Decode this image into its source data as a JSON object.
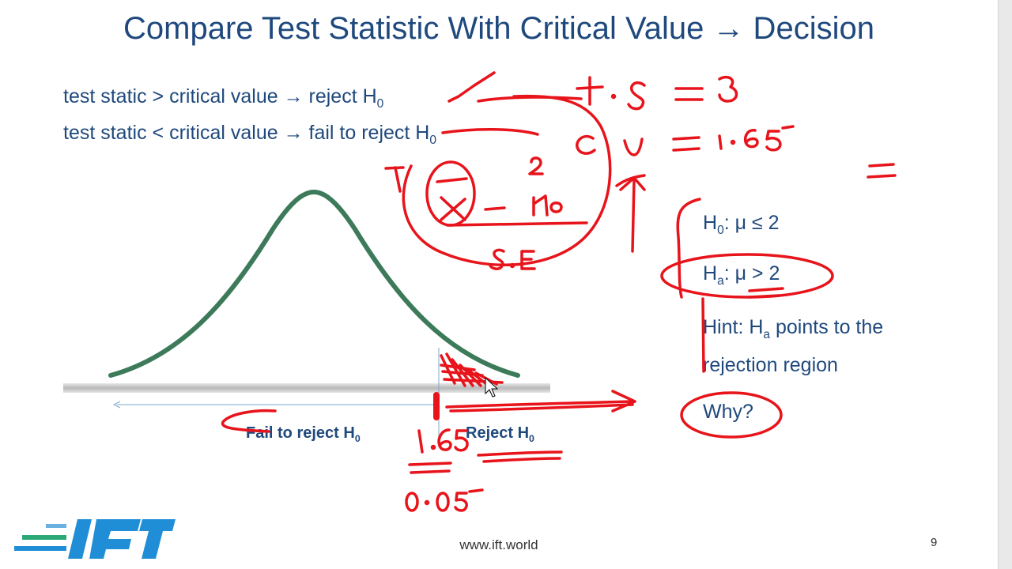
{
  "slide": {
    "title": "Compare Test Statistic With Critical Value → Decision",
    "rules": [
      {
        "text": "test static > critical value → reject H",
        "sub": "0"
      },
      {
        "text": "test static < critical value → fail to reject H",
        "sub": "0"
      }
    ],
    "hypotheses": {
      "h0": {
        "prefix": "H",
        "sub": "0",
        "text": ": μ ≤ 2"
      },
      "ha": {
        "prefix": "H",
        "sub": "a",
        "text": ": μ > 2"
      }
    },
    "hint": {
      "prefix": "Hint: H",
      "sub": "a",
      "text": " points to the rejection region"
    },
    "why": "Why?",
    "axis": {
      "fail_label": "Fail to reject H",
      "fail_sub": "0",
      "reject_label": "Reject H",
      "reject_sub": "0"
    },
    "annotations": [
      "t.s = 3",
      "c.v = 1.65",
      "X̄ − μ₀",
      "2",
      "S.E",
      "1.65",
      "0.05",
      "="
    ],
    "footer": {
      "url": "www.ift.world",
      "page": "9"
    },
    "logo": {
      "text": "IFT"
    }
  },
  "colors": {
    "title": "#1f497d",
    "curve": "#3c7a5a",
    "ink": "#e8141b",
    "logo_blue": "#1f8ed6",
    "logo_green": "#2aa876"
  }
}
